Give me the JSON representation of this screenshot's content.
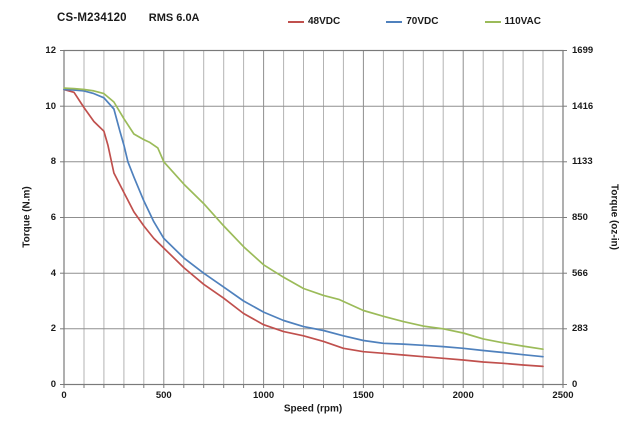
{
  "header": {
    "model": "CS-M234120",
    "rating": "RMS 6.0A"
  },
  "colors": {
    "series_red": "#C0504D",
    "series_blue": "#4F81BD",
    "series_green": "#9BBB59",
    "grid_minor": "#b3b3b3",
    "grid_major": "#8f8f8f",
    "frame": "#7a7a7a",
    "text": "#1a1a1a"
  },
  "chart_data": {
    "type": "line",
    "title": "CS-M234120",
    "subtitle": "RMS 6.0A",
    "xlabel": "Speed (rpm)",
    "ylabel_left": "Torque (N.m)",
    "ylabel_right": "Torque (oz-in)",
    "xlim": [
      0,
      2500
    ],
    "ylim_left": [
      0,
      12
    ],
    "ylim_right": [
      0,
      1699
    ],
    "x_ticks": [
      0,
      500,
      1000,
      1500,
      2000,
      2500
    ],
    "x_minor_step": 100,
    "y_ticks_left": [
      0,
      2,
      4,
      6,
      8,
      10,
      12
    ],
    "y_ticks_right": [
      0,
      283,
      566,
      850,
      1133,
      1416,
      1699
    ],
    "grid": "on",
    "legend_position": "top",
    "series": [
      {
        "name": "48VDC",
        "color": "#C0504D",
        "x": [
          0,
          50,
          100,
          150,
          200,
          220,
          250,
          300,
          350,
          400,
          450,
          500,
          600,
          700,
          800,
          900,
          1000,
          1100,
          1200,
          1300,
          1400,
          1500,
          1600,
          1700,
          1800,
          1900,
          2000,
          2100,
          2200,
          2300,
          2400
        ],
        "y": [
          10.6,
          10.5,
          9.95,
          9.45,
          9.1,
          8.6,
          7.6,
          6.9,
          6.2,
          5.7,
          5.25,
          4.9,
          4.2,
          3.6,
          3.1,
          2.55,
          2.15,
          1.9,
          1.75,
          1.55,
          1.3,
          1.18,
          1.12,
          1.06,
          1.0,
          0.94,
          0.88,
          0.81,
          0.76,
          0.7,
          0.65
        ]
      },
      {
        "name": "70VDC",
        "color": "#4F81BD",
        "x": [
          0,
          50,
          100,
          150,
          200,
          250,
          280,
          300,
          320,
          350,
          400,
          450,
          500,
          600,
          700,
          800,
          900,
          1000,
          1100,
          1200,
          1300,
          1400,
          1500,
          1600,
          1700,
          1800,
          1900,
          2000,
          2100,
          2200,
          2300,
          2400
        ],
        "y": [
          10.6,
          10.58,
          10.55,
          10.45,
          10.3,
          9.9,
          9.1,
          8.6,
          8.0,
          7.45,
          6.6,
          5.85,
          5.25,
          4.55,
          4.0,
          3.5,
          3.0,
          2.6,
          2.3,
          2.08,
          1.94,
          1.75,
          1.58,
          1.48,
          1.45,
          1.41,
          1.36,
          1.3,
          1.22,
          1.15,
          1.07,
          1.0
        ]
      },
      {
        "name": "110VAC",
        "color": "#9BBB59",
        "x": [
          0,
          50,
          100,
          150,
          200,
          250,
          300,
          350,
          400,
          430,
          470,
          500,
          600,
          700,
          800,
          900,
          1000,
          1100,
          1200,
          1300,
          1380,
          1500,
          1600,
          1700,
          1800,
          1900,
          2000,
          2100,
          2200,
          2300,
          2400
        ],
        "y": [
          10.65,
          10.63,
          10.6,
          10.55,
          10.45,
          10.15,
          9.55,
          9.0,
          8.8,
          8.7,
          8.5,
          8.0,
          7.2,
          6.5,
          5.7,
          4.95,
          4.3,
          3.85,
          3.45,
          3.2,
          3.05,
          2.66,
          2.45,
          2.26,
          2.1,
          2.0,
          1.85,
          1.64,
          1.5,
          1.38,
          1.27
        ]
      }
    ]
  }
}
